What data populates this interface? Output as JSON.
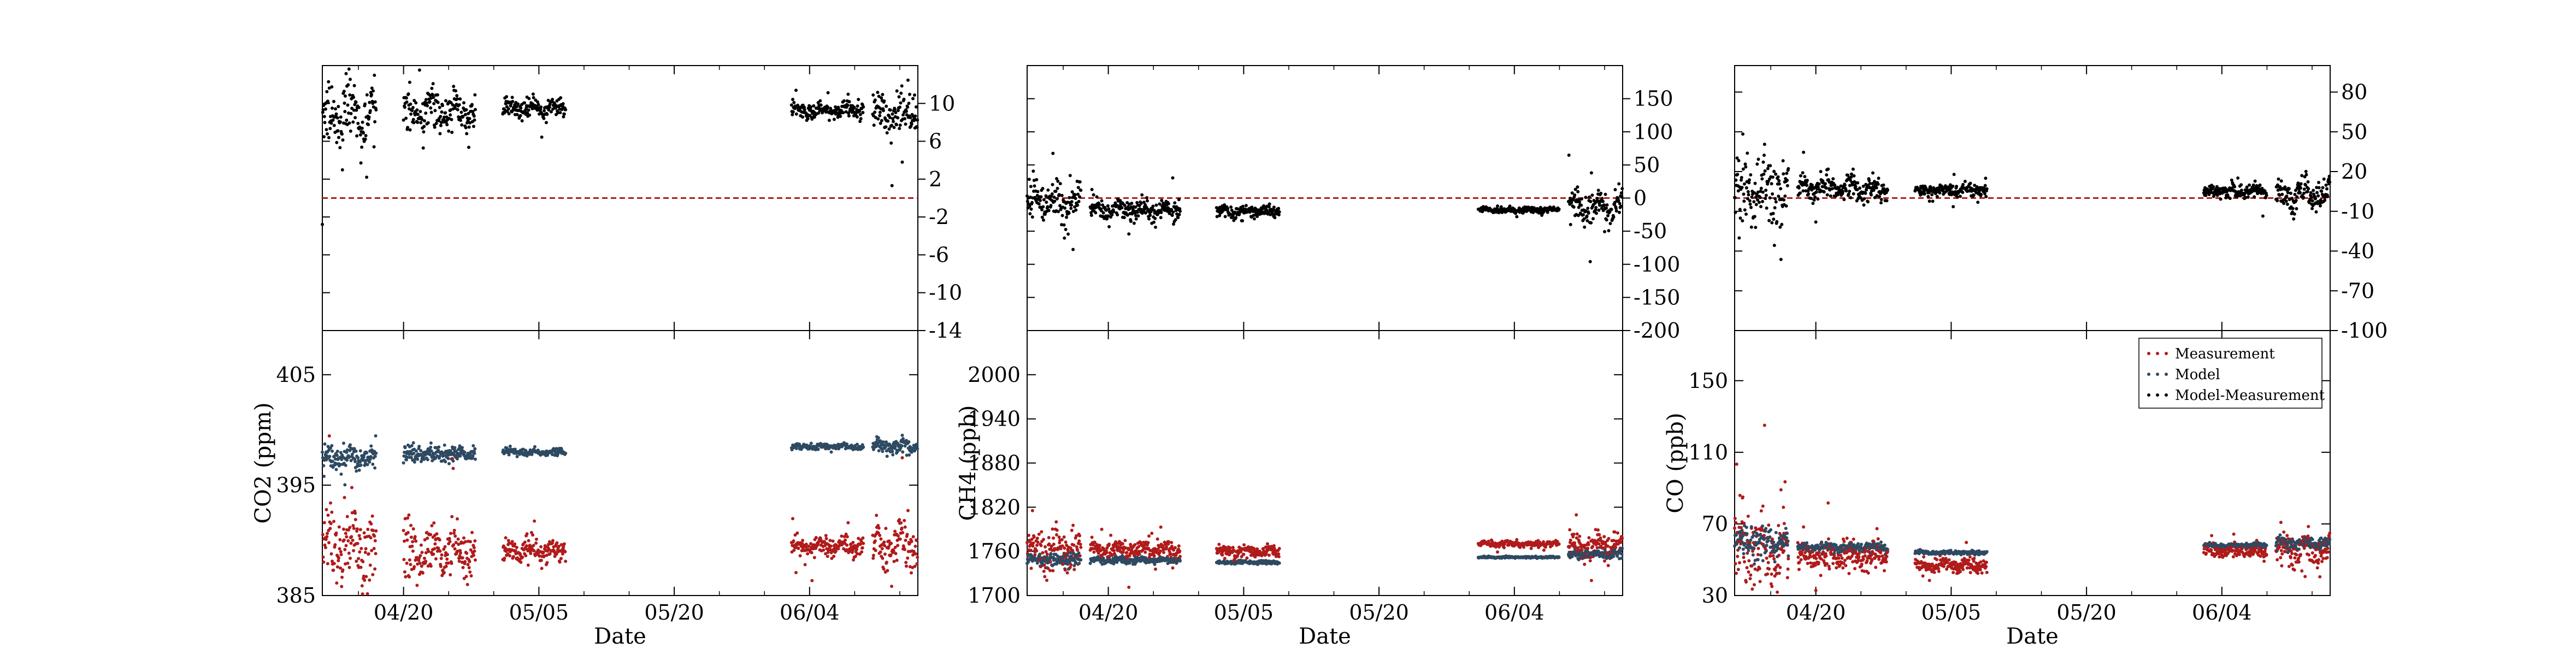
{
  "colors": {
    "measurement": "#b01b1b",
    "model": "#2e4a62",
    "diff": "#000000",
    "zero_line": "#b01b1b",
    "axis": "#000000"
  },
  "legend": {
    "placement": "top-right of CO panel",
    "entries": [
      "Measurement",
      "Model",
      "Model-Measurement"
    ]
  },
  "chart_data": [
    {
      "type": "scatter",
      "id": "co2",
      "xlabel": "Date",
      "ylabel": "CO2 (ppm)",
      "x_ticks": [
        "04/20",
        "05/05",
        "05/20",
        "06/04"
      ],
      "xlim": [
        "04/11",
        "06/16"
      ],
      "ylim": [
        385,
        409
      ],
      "y_ticks": [
        385,
        395,
        405
      ],
      "diff_ylim": [
        -14,
        14
      ],
      "diff_ticks": [
        -14,
        -10,
        -6,
        -2,
        2,
        6,
        10
      ],
      "segments": [
        {
          "start": "04/11",
          "end": "04/17",
          "measurement": 390.0,
          "model": 397.5,
          "diff": 8.5,
          "noise": 3.0
        },
        {
          "start": "04/20",
          "end": "04/28",
          "measurement": 389.0,
          "model": 397.8,
          "diff": 9.0,
          "noise": 1.8
        },
        {
          "start": "05/01",
          "end": "05/08",
          "measurement": 389.0,
          "model": 398.0,
          "diff": 9.5,
          "noise": 0.8
        },
        {
          "start": "06/02",
          "end": "06/10",
          "measurement": 389.5,
          "model": 398.5,
          "diff": 9.3,
          "noise": 0.7
        },
        {
          "start": "06/11",
          "end": "06/16",
          "measurement": 389.5,
          "model": 398.5,
          "diff": 9.0,
          "noise": 1.8
        }
      ]
    },
    {
      "type": "scatter",
      "id": "ch4",
      "xlabel": "Date",
      "ylabel": "CH4 (ppb)",
      "x_ticks": [
        "04/20",
        "05/05",
        "05/20",
        "06/04"
      ],
      "xlim": [
        "04/11",
        "06/16"
      ],
      "ylim": [
        1700,
        2060
      ],
      "y_ticks": [
        1700,
        1760,
        1820,
        1880,
        1940,
        2000
      ],
      "diff_ylim": [
        -200,
        200
      ],
      "diff_ticks": [
        -200,
        -150,
        -100,
        -50,
        0,
        50,
        100,
        150
      ],
      "segments": [
        {
          "start": "04/11",
          "end": "04/17",
          "measurement": 1762,
          "model": 1748,
          "diff": -8,
          "noise": 22
        },
        {
          "start": "04/18",
          "end": "04/28",
          "measurement": 1762,
          "model": 1748,
          "diff": -18,
          "noise": 10
        },
        {
          "start": "05/02",
          "end": "05/09",
          "measurement": 1760,
          "model": 1745,
          "diff": -20,
          "noise": 6
        },
        {
          "start": "05/31",
          "end": "06/09",
          "measurement": 1770,
          "model": 1752,
          "diff": -18,
          "noise": 3
        },
        {
          "start": "06/10",
          "end": "06/16",
          "measurement": 1768,
          "model": 1756,
          "diff": -15,
          "noise": 16
        }
      ]
    },
    {
      "type": "scatter",
      "id": "co",
      "xlabel": "Date",
      "ylabel": "CO (ppb)",
      "x_ticks": [
        "04/20",
        "05/05",
        "05/20",
        "06/04"
      ],
      "xlim": [
        "04/11",
        "06/16"
      ],
      "ylim": [
        30,
        178
      ],
      "y_ticks": [
        30,
        70,
        110,
        150
      ],
      "diff_ylim": [
        -100,
        100
      ],
      "diff_ticks": [
        -100,
        -70,
        -40,
        -10,
        20,
        50,
        80
      ],
      "segments": [
        {
          "start": "04/11",
          "end": "04/17",
          "measurement": 55,
          "model": 60,
          "diff": 2,
          "noise": 18
        },
        {
          "start": "04/18",
          "end": "04/28",
          "measurement": 52,
          "model": 57,
          "diff": 7,
          "noise": 6
        },
        {
          "start": "05/01",
          "end": "05/09",
          "measurement": 47,
          "model": 54,
          "diff": 6,
          "noise": 3
        },
        {
          "start": "06/02",
          "end": "06/09",
          "measurement": 55,
          "model": 58,
          "diff": 5,
          "noise": 3
        },
        {
          "start": "06/10",
          "end": "06/16",
          "measurement": 55,
          "model": 59,
          "diff": 3,
          "noise": 8
        }
      ]
    }
  ]
}
